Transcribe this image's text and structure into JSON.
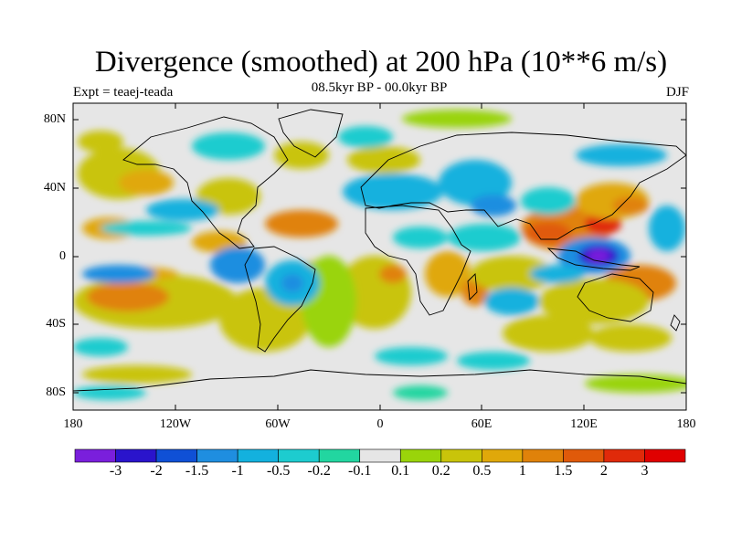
{
  "title": "Divergence (smoothed) at 200 hPa (10**6 m/s)",
  "experiment": "Expt = teaej-teada",
  "period": "08.5kyr BP - 00.0kyr BP",
  "season": "DJF",
  "lat_ticks": [
    "80N",
    "40N",
    "0",
    "40S",
    "80S"
  ],
  "lon_ticks": [
    "180",
    "120W",
    "60W",
    "0",
    "60E",
    "120E",
    "180"
  ],
  "colorbar": {
    "labels": [
      "-3",
      "-2",
      "-1.5",
      "-1",
      "-0.5",
      "-0.2",
      "-0.1",
      "0.1",
      "0.2",
      "0.5",
      "1",
      "1.5",
      "2",
      "3"
    ],
    "colors": [
      "#7a1fdc",
      "#2a14cc",
      "#0f50d6",
      "#1f8ee0",
      "#13b1de",
      "#1dcccf",
      "#22d6a0",
      "#e6e6e6",
      "#9ad40a",
      "#c9c40a",
      "#e0a80a",
      "#e0820a",
      "#e05a0a",
      "#e02a0a",
      "#e00000"
    ]
  },
  "map_features": {
    "ocean_background": "#e6e6e6",
    "land_outline": "#000000"
  }
}
